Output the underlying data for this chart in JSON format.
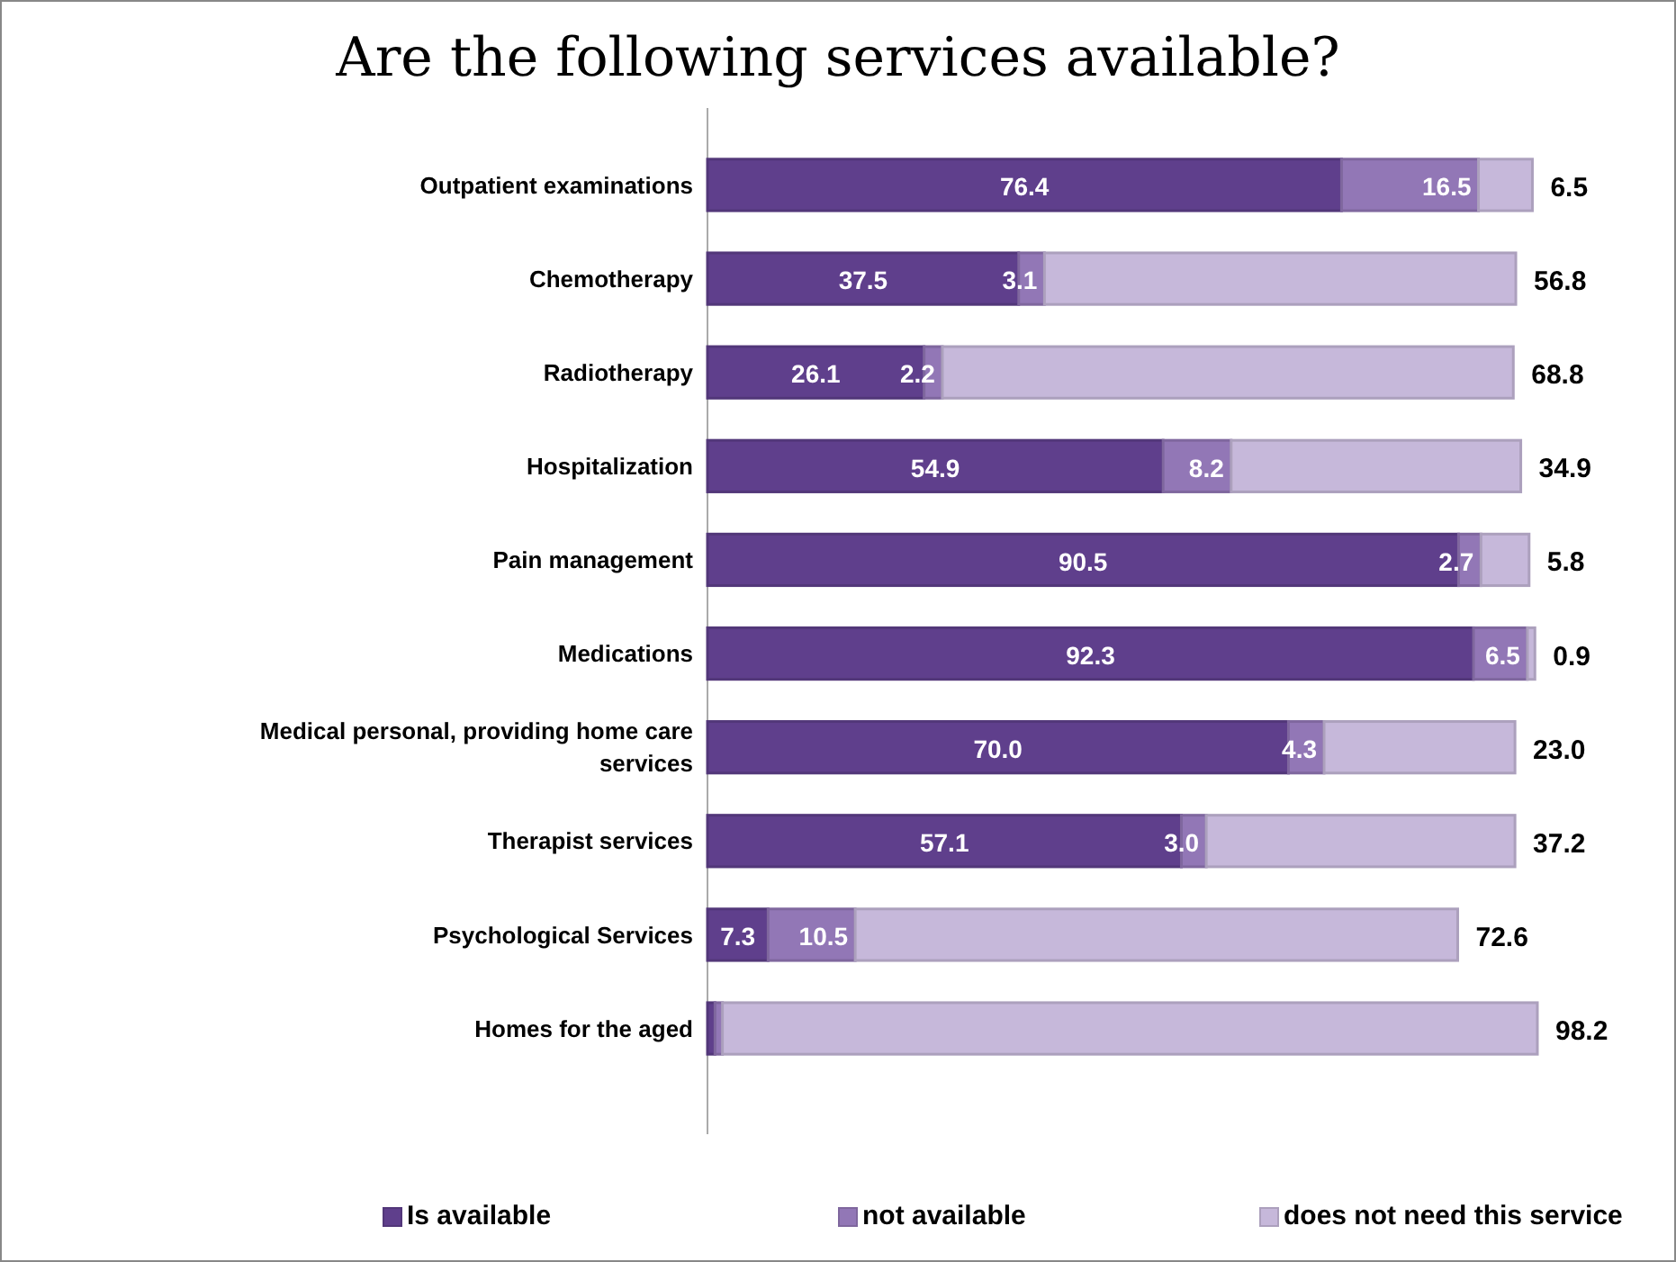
{
  "chart_data": {
    "type": "bar",
    "orientation": "horizontal",
    "stacked": true,
    "title": "Are the following services available?",
    "categories": [
      "Outpatient examinations",
      "Chemotherapy",
      "Radiotherapy",
      "Hospitalization",
      "Pain management",
      "Medications",
      "Medical personal, providing home care services",
      "Therapist services",
      "Psychological Services",
      "Homes for the aged"
    ],
    "series": [
      {
        "name": "Is available",
        "color": "#5f3f8c",
        "values": [
          76.4,
          37.5,
          26.1,
          54.9,
          90.5,
          92.3,
          70.0,
          57.1,
          7.3,
          0.9
        ],
        "value_labels": [
          "76.4",
          "37.5",
          "26.1",
          "54.9",
          "90.5",
          "92.3",
          "70.0",
          "57.1",
          "7.3",
          null
        ]
      },
      {
        "name": "not available",
        "color": "#9277b6",
        "values": [
          16.5,
          3.1,
          2.2,
          8.2,
          2.7,
          6.5,
          4.3,
          3.0,
          10.5,
          0.9
        ],
        "value_labels": [
          "16.5",
          "3.1",
          "2.2",
          "8.2",
          "2.7",
          "6.5",
          "4.3",
          "3.0",
          "10.5",
          null
        ]
      },
      {
        "name": "does not need this service",
        "color": "#c6b8da",
        "values": [
          6.5,
          56.8,
          68.8,
          34.9,
          5.8,
          0.9,
          23.0,
          37.2,
          72.6,
          98.2
        ],
        "value_labels": [
          "6.5",
          "56.8",
          "68.8",
          "34.9",
          "5.8",
          "0.9",
          "23.0",
          "37.2",
          "72.6",
          "98.2"
        ]
      }
    ],
    "legend": "bottom"
  }
}
